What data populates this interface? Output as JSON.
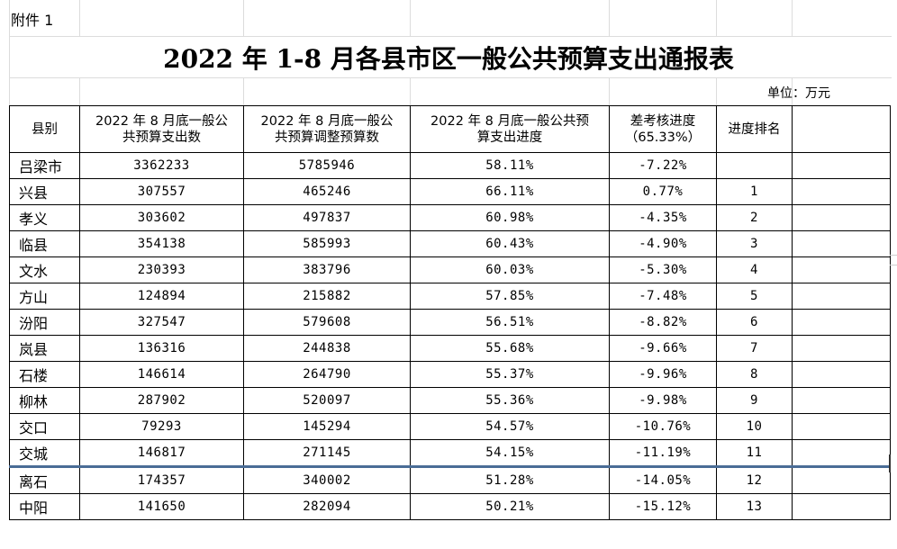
{
  "attachment_label": "附件 1",
  "title": "2022 年 1-8 月各县市区一般公共预算支出通报表",
  "unit_label": "单位：万元",
  "headers": {
    "county": "县别",
    "expenditure": "2022 年 8 月底一般公\n共预算支出数",
    "budget": "2022 年 8 月底一般公\n共预算调整预算数",
    "progress": "2022 年 8 月底一般公共预\n算支出进度",
    "gap": "差考核进度\n（65.33%）",
    "rank": "进度排名",
    "extra": ""
  },
  "rows": [
    {
      "county": "吕梁市",
      "expenditure": "3362233",
      "budget": "5785946",
      "progress": "58.11%",
      "gap": "-7.22%",
      "rank": ""
    },
    {
      "county": "兴县",
      "expenditure": "307557",
      "budget": "465246",
      "progress": "66.11%",
      "gap": "0.77%",
      "rank": "1"
    },
    {
      "county": "孝义",
      "expenditure": "303602",
      "budget": "497837",
      "progress": "60.98%",
      "gap": "-4.35%",
      "rank": "2"
    },
    {
      "county": "临县",
      "expenditure": "354138",
      "budget": "585993",
      "progress": "60.43%",
      "gap": "-4.90%",
      "rank": "3"
    },
    {
      "county": "文水",
      "expenditure": "230393",
      "budget": "383796",
      "progress": "60.03%",
      "gap": "-5.30%",
      "rank": "4"
    },
    {
      "county": "方山",
      "expenditure": "124894",
      "budget": "215882",
      "progress": "57.85%",
      "gap": "-7.48%",
      "rank": "5"
    },
    {
      "county": "汾阳",
      "expenditure": "327547",
      "budget": "579608",
      "progress": "56.51%",
      "gap": "-8.82%",
      "rank": "6"
    },
    {
      "county": "岚县",
      "expenditure": "136316",
      "budget": "244838",
      "progress": "55.68%",
      "gap": "-9.66%",
      "rank": "7"
    },
    {
      "county": "石楼",
      "expenditure": "146614",
      "budget": "264790",
      "progress": "55.37%",
      "gap": "-9.96%",
      "rank": "8"
    },
    {
      "county": "柳林",
      "expenditure": "287902",
      "budget": "520097",
      "progress": "55.36%",
      "gap": "-9.98%",
      "rank": "9"
    },
    {
      "county": "交口",
      "expenditure": "79293",
      "budget": "145294",
      "progress": "54.57%",
      "gap": "-10.76%",
      "rank": "10"
    },
    {
      "county": "交城",
      "expenditure": "146817",
      "budget": "271145",
      "progress": "54.15%",
      "gap": "-11.19%",
      "rank": "11"
    },
    {
      "county": "离石",
      "expenditure": "174357",
      "budget": "340002",
      "progress": "51.28%",
      "gap": "-14.05%",
      "rank": "12"
    },
    {
      "county": "中阳",
      "expenditure": "141650",
      "budget": "282094",
      "progress": "50.21%",
      "gap": "-15.12%",
      "rank": "13"
    }
  ],
  "colors": {
    "separator": "#4a6c96",
    "gridline": "#dcdcdc"
  }
}
